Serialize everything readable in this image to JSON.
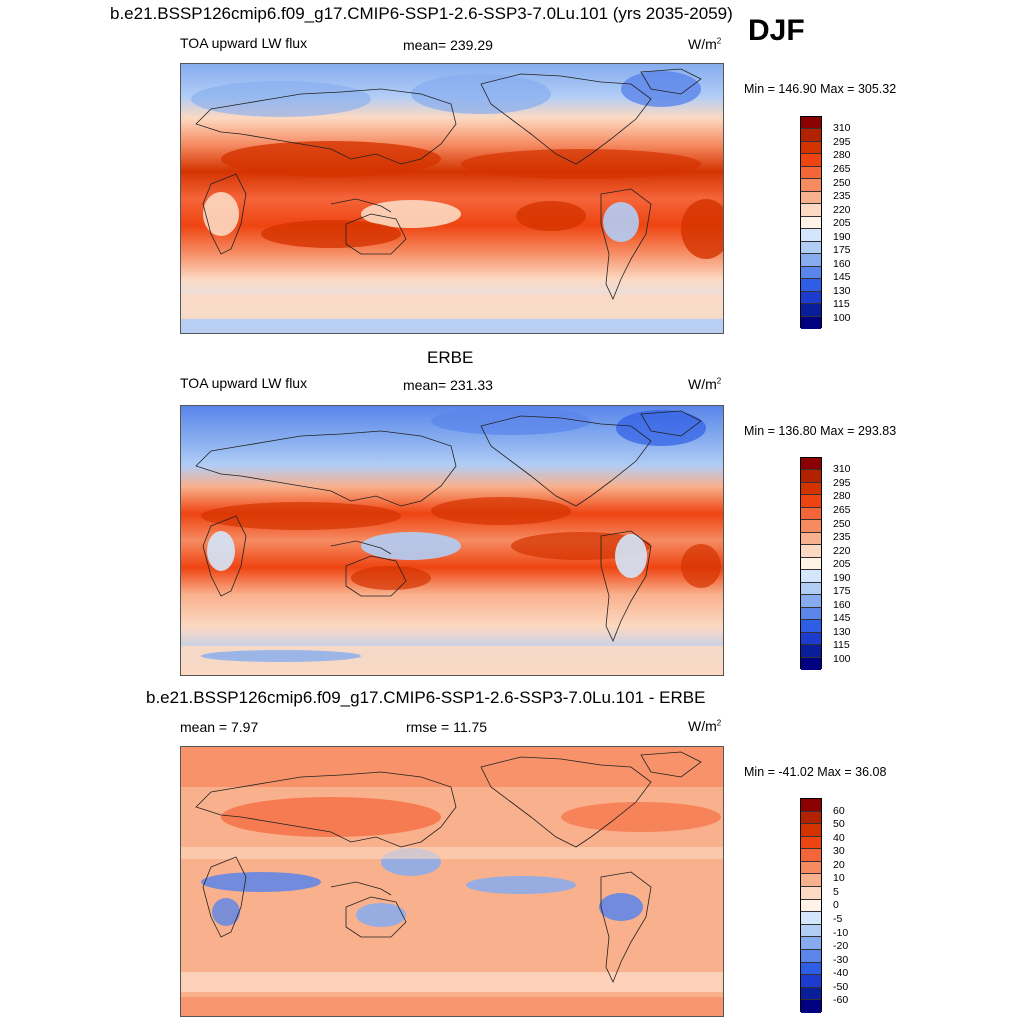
{
  "title": "b.e21.BSSP126cmip6.f09_g17.CMIP6-SSP1-2.6-SSP3-7.0Lu.101 (yrs 2035-2059)",
  "season": "DJF",
  "units": "W/m",
  "units_exp": "2",
  "panels": [
    {
      "heading": "",
      "left": "TOA upward LW flux",
      "center": "mean= 239.29",
      "minmax": "Min = 146.90 Max = 305.32",
      "colorbar_labels": [
        "310",
        "295",
        "280",
        "265",
        "250",
        "235",
        "220",
        "205",
        "190",
        "175",
        "160",
        "145",
        "130",
        "115",
        "100"
      ]
    },
    {
      "heading": "ERBE",
      "left": "TOA upward LW flux",
      "center": "mean= 231.33",
      "minmax": "Min = 136.80 Max = 293.83",
      "colorbar_labels": [
        "310",
        "295",
        "280",
        "265",
        "250",
        "235",
        "220",
        "205",
        "190",
        "175",
        "160",
        "145",
        "130",
        "115",
        "100"
      ]
    },
    {
      "heading": "b.e21.BSSP126cmip6.f09_g17.CMIP6-SSP1-2.6-SSP3-7.0Lu.101 - ERBE",
      "left": "mean =   7.97",
      "center": "rmse =  11.75",
      "minmax": "Min = -41.02 Max =  36.08",
      "colorbar_labels": [
        "60",
        "50",
        "40",
        "30",
        "20",
        "10",
        "5",
        "0",
        "-5",
        "-10",
        "-20",
        "-30",
        "-40",
        "-50",
        "-60"
      ]
    }
  ],
  "colors": {
    "flux_scale": [
      "#8b0000",
      "#b22200",
      "#d43300",
      "#ee4411",
      "#f5653a",
      "#f68b62",
      "#f9b08c",
      "#fcd9c2",
      "#fff2e6",
      "#d4e6fb",
      "#b1cdf6",
      "#86acef",
      "#5a85ea",
      "#2f5ee6",
      "#1d3ccf",
      "#0a1d9a",
      "#000080"
    ],
    "diff_scale": [
      "#8b0000",
      "#b22200",
      "#d43300",
      "#ee4411",
      "#f5653a",
      "#f68b62",
      "#f9b08c",
      "#fcd9c2",
      "#fff2e6",
      "#d4e6fb",
      "#b1cdf6",
      "#86acef",
      "#5a85ea",
      "#2f5ee6",
      "#1d3ccf",
      "#0a1d9a",
      "#000080"
    ]
  }
}
